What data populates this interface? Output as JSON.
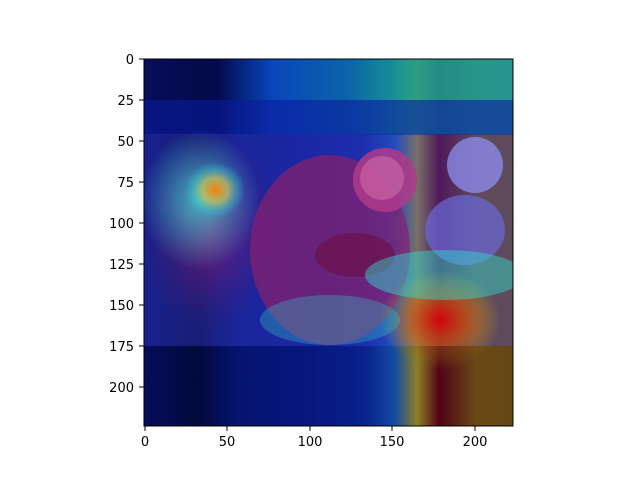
{
  "figure": {
    "type": "heatmap-overlay",
    "description_of_content": "",
    "x_ticks": [
      "0",
      "50",
      "100",
      "150",
      "200"
    ],
    "y_ticks": [
      "0",
      "25",
      "50",
      "75",
      "100",
      "125",
      "150",
      "175",
      "200"
    ],
    "xlim": [
      0,
      224
    ],
    "ylim": [
      224,
      0
    ],
    "colormap": "jet",
    "colors": {
      "axes_frame": "#000000",
      "background": "#ffffff",
      "low": "#00007f",
      "mid": "#00ffff",
      "high": "#ff0000"
    }
  }
}
